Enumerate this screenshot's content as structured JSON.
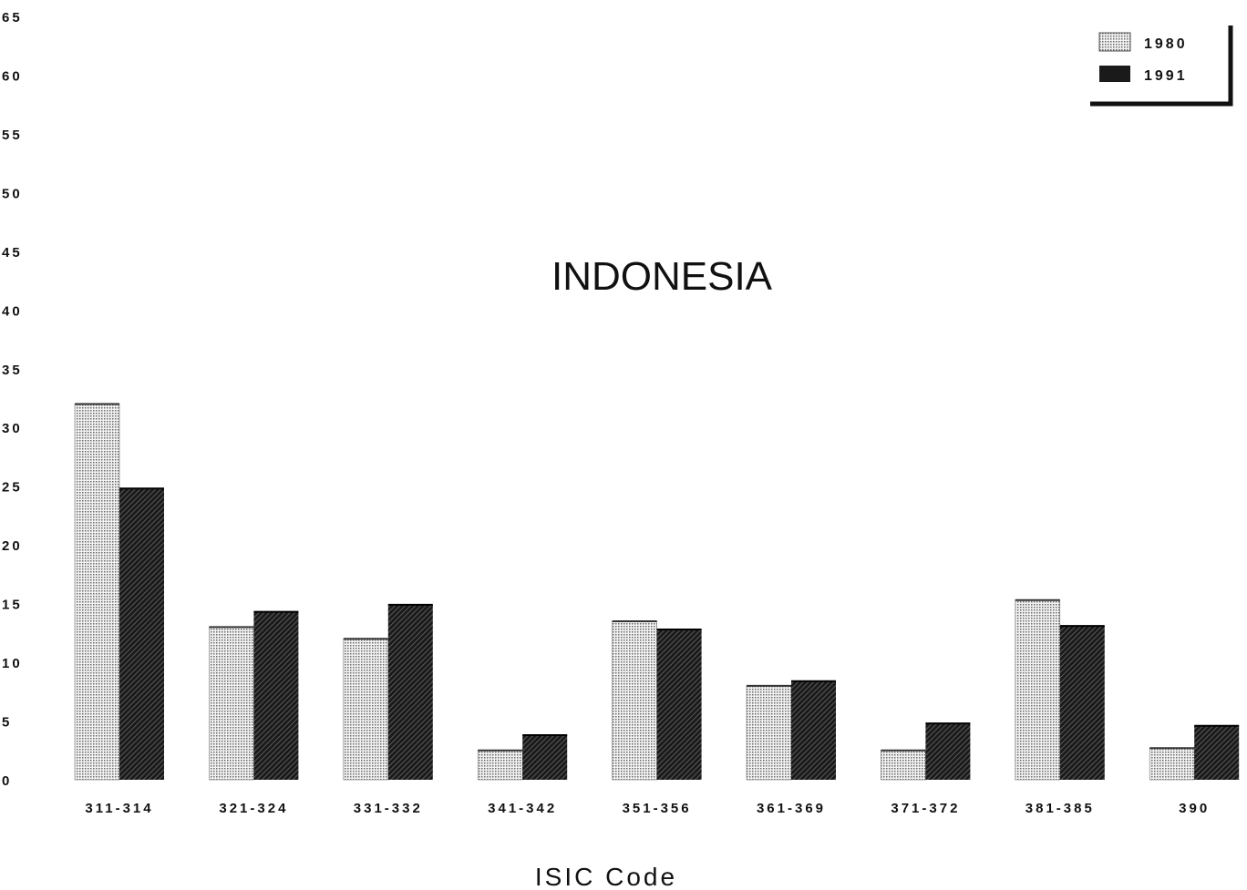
{
  "chart_data": {
    "type": "bar",
    "title": "INDONESIA",
    "xlabel": "ISIC Code",
    "ylabel": "",
    "ylim": [
      0,
      65
    ],
    "yticks": [
      0,
      5,
      10,
      15,
      20,
      25,
      30,
      35,
      40,
      45,
      50,
      55,
      60,
      65
    ],
    "ytick_labels": [
      "0",
      "5",
      "10",
      "15",
      "20",
      "25",
      "30",
      "35",
      "40",
      "45",
      "50",
      "55",
      "60",
      "65"
    ],
    "categories": [
      "311-314",
      "321-324",
      "331-332",
      "341-342",
      "351-356",
      "361-369",
      "371-372",
      "381-385",
      "390"
    ],
    "series": [
      {
        "name": "1980",
        "values": [
          32,
          13,
          12,
          2.5,
          13.5,
          8,
          2.5,
          15.3,
          2.7
        ]
      },
      {
        "name": "1991",
        "values": [
          24.8,
          14.3,
          14.9,
          3.8,
          12.8,
          8.4,
          4.8,
          13.1,
          4.6
        ]
      }
    ],
    "legend": {
      "position": "top-right"
    },
    "grid": false,
    "colors": {
      "series_1980": "#c8c8c8",
      "series_1991": "#1c1c1c"
    }
  }
}
